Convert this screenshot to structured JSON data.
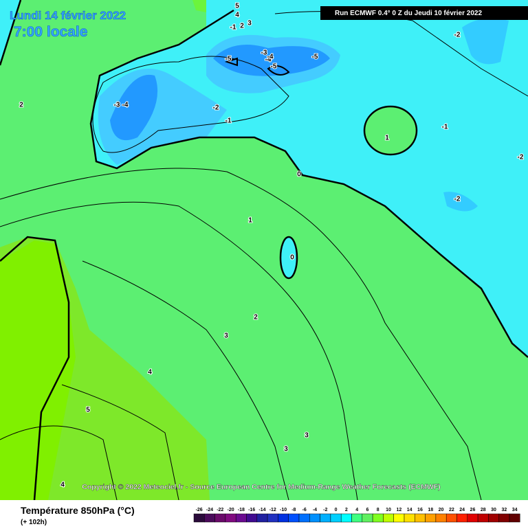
{
  "header": {
    "date": "Lundi 14 février 2022",
    "time": "7:00 locale",
    "run": "Run ECMWF 0.4° 0 Z du Jeudi 10 février 2022"
  },
  "map": {
    "contour_labels": [
      5,
      4,
      -1,
      2,
      3,
      -3,
      -4,
      -5,
      -4,
      -5,
      -5,
      -3,
      -4,
      -2,
      -1,
      0,
      1,
      -1,
      -2,
      -2,
      -2,
      2,
      0,
      1,
      2,
      3,
      3,
      3,
      4,
      5,
      4
    ]
  },
  "copyright": "Copyright © 2022 Meteociel.fr - Source European Centre for Medium-Range Weather Forecasts (ECMWF)",
  "footer": {
    "title": "Température 850hPa (°C)",
    "lead": "(+ 102h)"
  },
  "colorbar": {
    "labels": [
      -26,
      -24,
      -22,
      -20,
      -18,
      -16,
      -14,
      -12,
      -10,
      -8,
      -6,
      -4,
      -2,
      0,
      2,
      4,
      6,
      8,
      10,
      12,
      14,
      16,
      18,
      20,
      22,
      24,
      26,
      28,
      30,
      32,
      34
    ]
  }
}
